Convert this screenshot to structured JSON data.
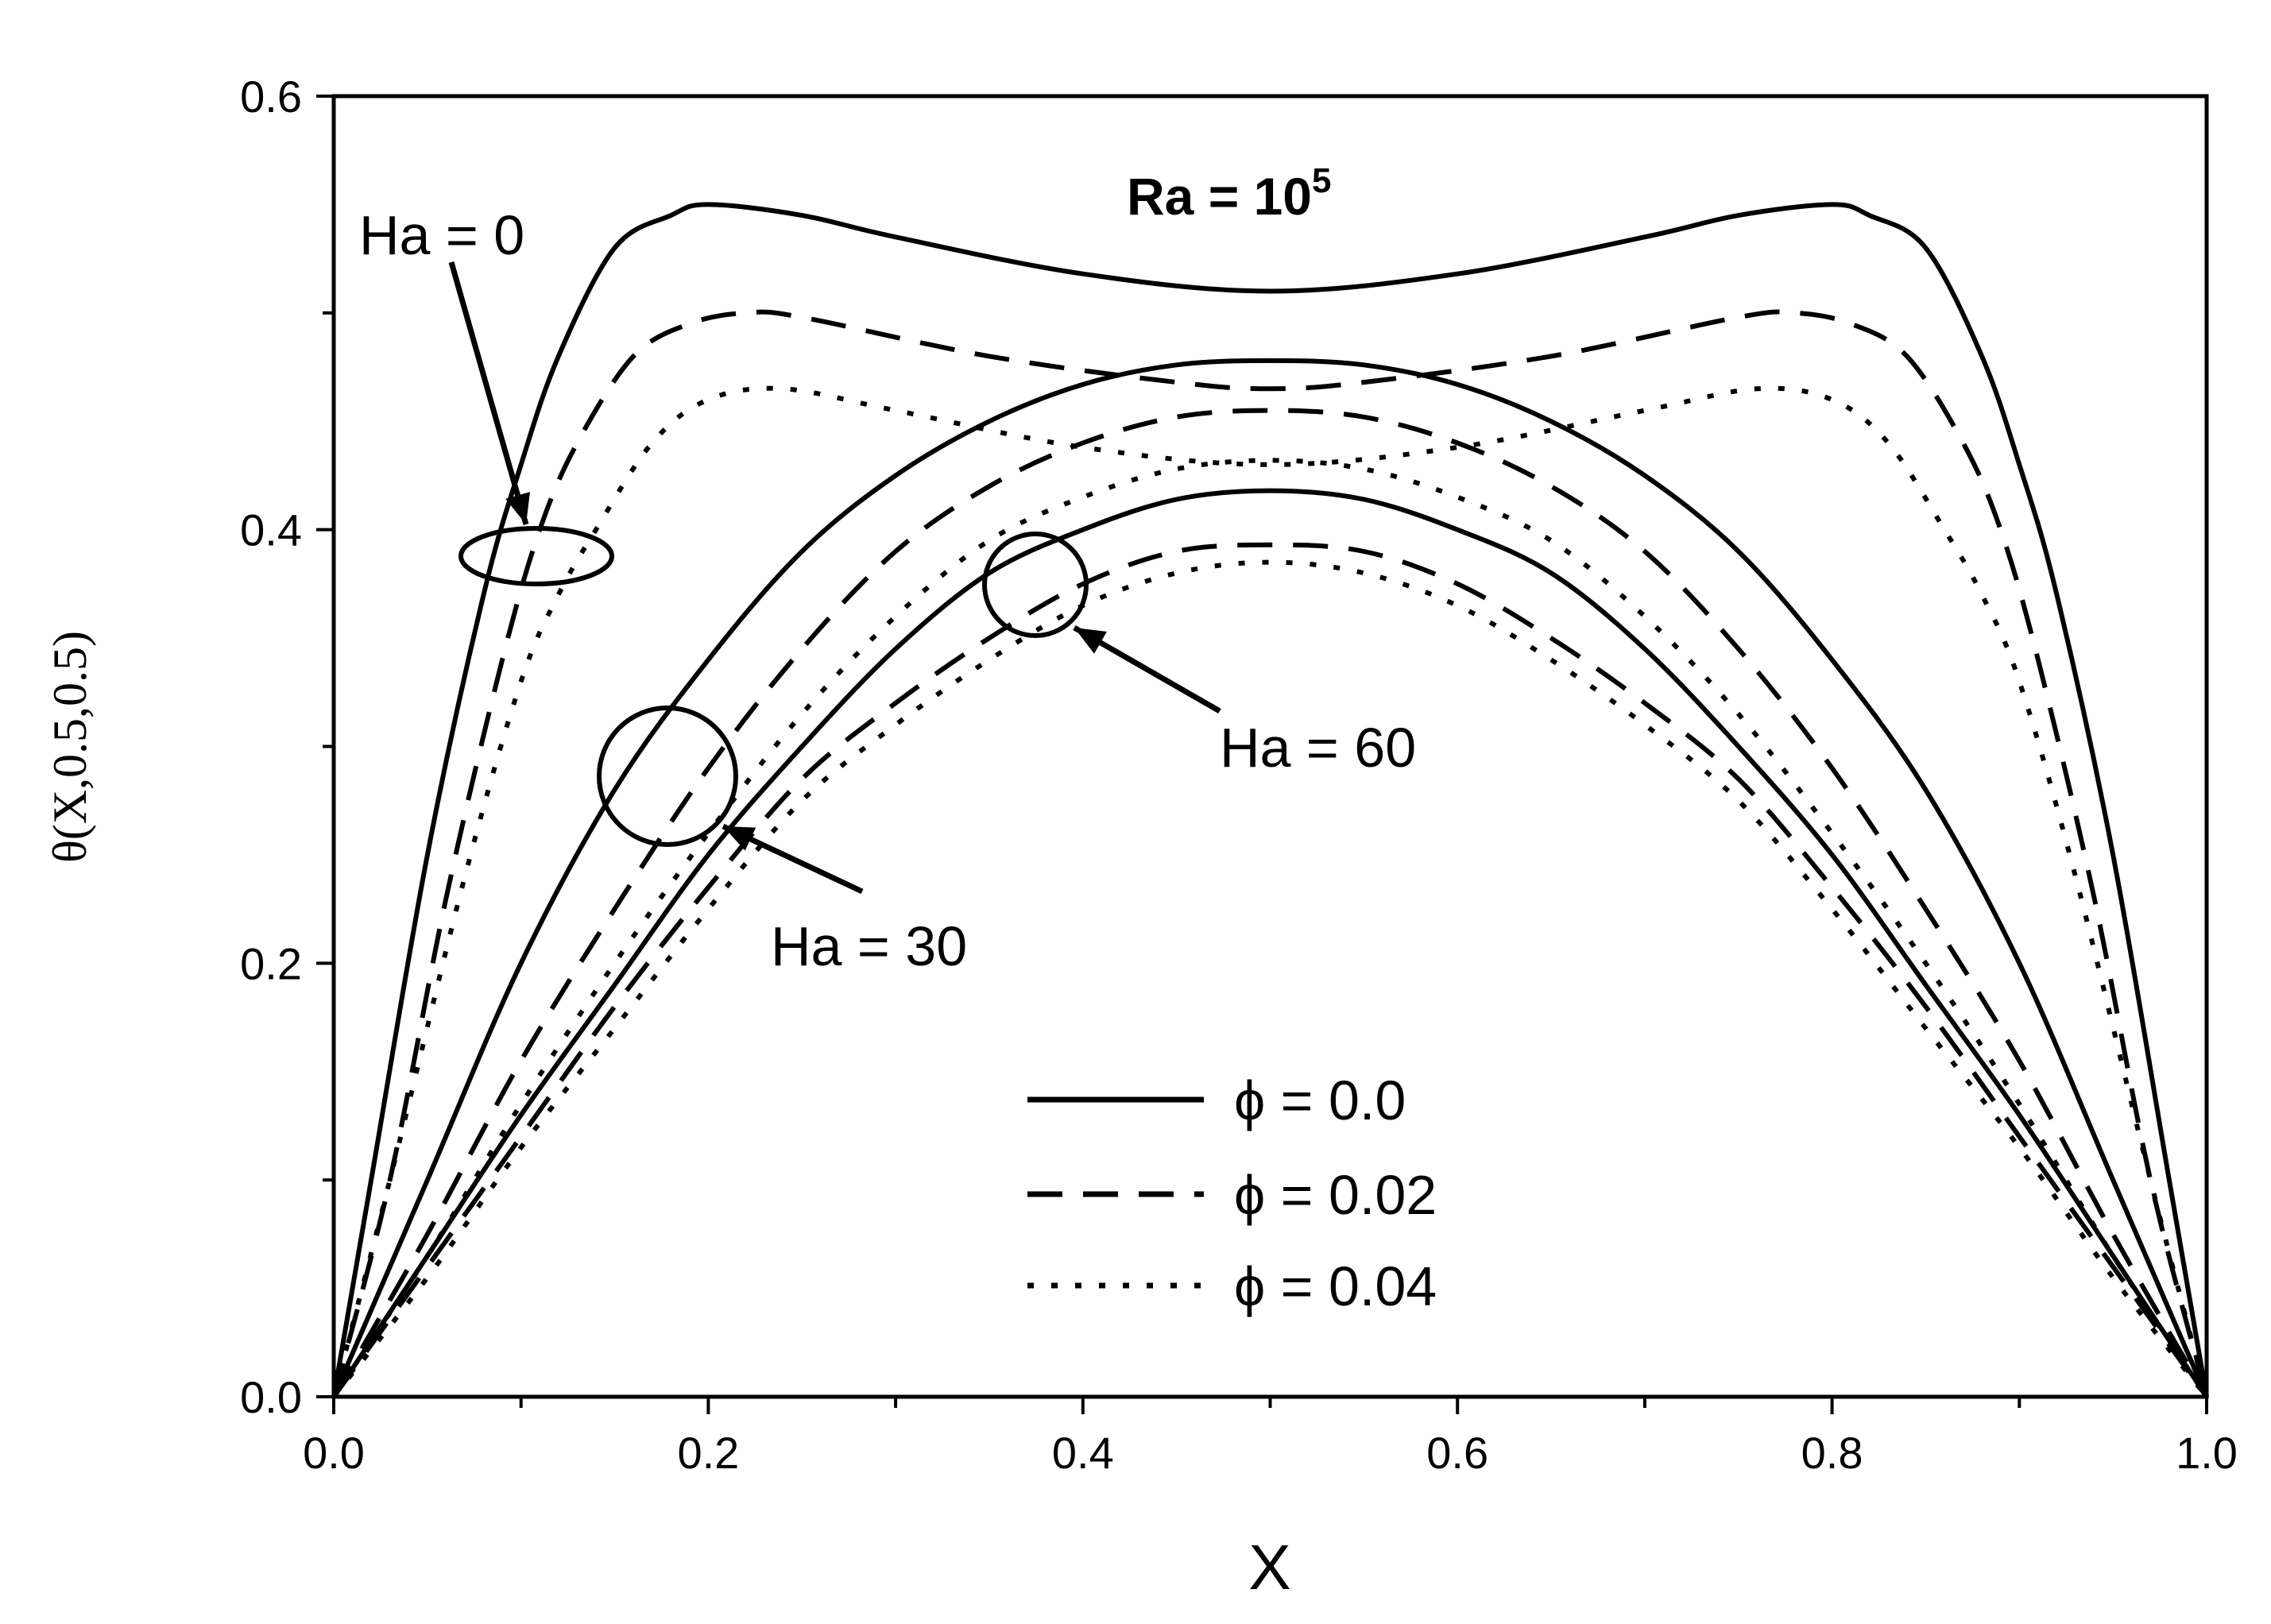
{
  "chart_data": {
    "type": "line",
    "title": "Ra = 10",
    "title_superscript": "5",
    "xlabel": "X",
    "ylabel": "θ(X,0.5,0.5)",
    "xlim": [
      0,
      1
    ],
    "ylim": [
      0,
      0.6
    ],
    "xticks": [
      "0.0",
      "0.2",
      "0.4",
      "0.6",
      "0.8",
      "1.0"
    ],
    "yticks": [
      "0.0",
      "0.2",
      "0.4",
      "0.6"
    ],
    "grid": false,
    "legend_position": "lower-center",
    "legend": [
      {
        "label": "ϕ = 0.0",
        "style": "solid"
      },
      {
        "label": "ϕ = 0.02",
        "style": "dashed"
      },
      {
        "label": "ϕ = 0.04",
        "style": "dotted"
      }
    ],
    "series": [
      {
        "name": "Ha = 0, ϕ = 0.0",
        "style": "solid",
        "x": [
          0,
          0.02,
          0.05,
          0.08,
          0.1,
          0.12,
          0.15,
          0.18,
          0.2,
          0.25,
          0.3,
          0.4,
          0.5,
          0.6,
          0.7,
          0.75,
          0.8,
          0.82,
          0.85,
          0.88,
          0.9,
          0.92,
          0.95,
          0.98,
          1.0
        ],
        "y": [
          0,
          0.1,
          0.25,
          0.37,
          0.43,
          0.48,
          0.53,
          0.545,
          0.55,
          0.545,
          0.535,
          0.518,
          0.51,
          0.518,
          0.535,
          0.545,
          0.55,
          0.545,
          0.53,
          0.48,
          0.43,
          0.37,
          0.25,
          0.1,
          0
        ]
      },
      {
        "name": "Ha = 0, ϕ = 0.02",
        "style": "dashed",
        "x": [
          0,
          0.03,
          0.06,
          0.09,
          0.11,
          0.13,
          0.16,
          0.19,
          0.22,
          0.25,
          0.35,
          0.45,
          0.5,
          0.55,
          0.65,
          0.75,
          0.78,
          0.81,
          0.84,
          0.87,
          0.89,
          0.91,
          0.94,
          0.97,
          1.0
        ],
        "y": [
          0,
          0.1,
          0.23,
          0.34,
          0.4,
          0.44,
          0.48,
          0.495,
          0.5,
          0.498,
          0.48,
          0.468,
          0.465,
          0.468,
          0.48,
          0.498,
          0.5,
          0.495,
          0.48,
          0.44,
          0.4,
          0.34,
          0.23,
          0.1,
          0
        ]
      },
      {
        "name": "Ha = 0, ϕ = 0.04",
        "style": "dotted",
        "x": [
          0,
          0.03,
          0.07,
          0.1,
          0.12,
          0.14,
          0.17,
          0.2,
          0.24,
          0.3,
          0.4,
          0.5,
          0.6,
          0.7,
          0.76,
          0.8,
          0.83,
          0.86,
          0.88,
          0.9,
          0.93,
          0.97,
          1.0
        ],
        "y": [
          0,
          0.1,
          0.24,
          0.33,
          0.37,
          0.4,
          0.44,
          0.46,
          0.465,
          0.455,
          0.438,
          0.43,
          0.438,
          0.455,
          0.465,
          0.46,
          0.44,
          0.4,
          0.37,
          0.33,
          0.24,
          0.1,
          0
        ]
      },
      {
        "name": "Ha = 30, ϕ = 0.0",
        "style": "solid",
        "x": [
          0,
          0.05,
          0.1,
          0.15,
          0.2,
          0.25,
          0.3,
          0.35,
          0.4,
          0.45,
          0.5,
          0.55,
          0.6,
          0.65,
          0.7,
          0.75,
          0.8,
          0.85,
          0.9,
          0.95,
          1.0
        ],
        "y": [
          0,
          0.1,
          0.2,
          0.28,
          0.34,
          0.39,
          0.425,
          0.45,
          0.467,
          0.476,
          0.478,
          0.476,
          0.467,
          0.45,
          0.425,
          0.39,
          0.34,
          0.28,
          0.2,
          0.1,
          0
        ]
      },
      {
        "name": "Ha = 30, ϕ = 0.02",
        "style": "dashed",
        "x": [
          0,
          0.05,
          0.1,
          0.15,
          0.2,
          0.25,
          0.3,
          0.35,
          0.4,
          0.45,
          0.5,
          0.55,
          0.6,
          0.65,
          0.7,
          0.75,
          0.8,
          0.85,
          0.9,
          0.95,
          1.0
        ],
        "y": [
          0,
          0.075,
          0.155,
          0.225,
          0.29,
          0.345,
          0.39,
          0.42,
          0.44,
          0.452,
          0.455,
          0.452,
          0.44,
          0.42,
          0.39,
          0.345,
          0.29,
          0.225,
          0.155,
          0.075,
          0
        ]
      },
      {
        "name": "Ha = 30, ϕ = 0.04",
        "style": "dotted",
        "x": [
          0,
          0.05,
          0.1,
          0.15,
          0.2,
          0.25,
          0.3,
          0.35,
          0.4,
          0.45,
          0.5,
          0.55,
          0.6,
          0.65,
          0.7,
          0.75,
          0.8,
          0.85,
          0.9,
          0.95,
          1.0
        ],
        "y": [
          0,
          0.065,
          0.135,
          0.2,
          0.26,
          0.315,
          0.36,
          0.395,
          0.415,
          0.428,
          0.432,
          0.428,
          0.415,
          0.395,
          0.36,
          0.315,
          0.26,
          0.2,
          0.135,
          0.065,
          0
        ]
      },
      {
        "name": "Ha = 60, ϕ = 0.0",
        "style": "solid",
        "x": [
          0,
          0.05,
          0.1,
          0.15,
          0.2,
          0.25,
          0.3,
          0.35,
          0.4,
          0.45,
          0.5,
          0.55,
          0.6,
          0.65,
          0.7,
          0.75,
          0.8,
          0.85,
          0.9,
          0.95,
          1.0
        ],
        "y": [
          0,
          0.065,
          0.13,
          0.19,
          0.25,
          0.3,
          0.345,
          0.38,
          0.4,
          0.414,
          0.418,
          0.414,
          0.4,
          0.38,
          0.345,
          0.3,
          0.25,
          0.19,
          0.13,
          0.065,
          0
        ]
      },
      {
        "name": "Ha = 60, ϕ = 0.02",
        "style": "dashed",
        "x": [
          0,
          0.05,
          0.1,
          0.15,
          0.2,
          0.25,
          0.3,
          0.35,
          0.4,
          0.45,
          0.5,
          0.55,
          0.6,
          0.65,
          0.7,
          0.75,
          0.8,
          0.85,
          0.9,
          0.95,
          1.0
        ],
        "y": [
          0,
          0.06,
          0.12,
          0.18,
          0.235,
          0.285,
          0.32,
          0.35,
          0.375,
          0.39,
          0.393,
          0.39,
          0.375,
          0.35,
          0.32,
          0.285,
          0.235,
          0.18,
          0.12,
          0.06,
          0
        ]
      },
      {
        "name": "Ha = 60, ϕ = 0.04",
        "style": "dotted",
        "x": [
          0,
          0.05,
          0.1,
          0.15,
          0.2,
          0.25,
          0.3,
          0.35,
          0.4,
          0.45,
          0.5,
          0.55,
          0.6,
          0.65,
          0.7,
          0.75,
          0.8,
          0.85,
          0.9,
          0.95,
          1.0
        ],
        "y": [
          0,
          0.055,
          0.115,
          0.17,
          0.225,
          0.275,
          0.31,
          0.34,
          0.365,
          0.38,
          0.385,
          0.38,
          0.365,
          0.34,
          0.31,
          0.275,
          0.225,
          0.17,
          0.115,
          0.055,
          0
        ]
      }
    ],
    "annotations": [
      {
        "text": "Ha = 0",
        "target_x": 0.1,
        "target_y": 0.39
      },
      {
        "text": "Ha = 30",
        "target_x": 0.18,
        "target_y": 0.29
      },
      {
        "text": "Ha = 60",
        "target_x": 0.38,
        "target_y": 0.375
      }
    ]
  }
}
